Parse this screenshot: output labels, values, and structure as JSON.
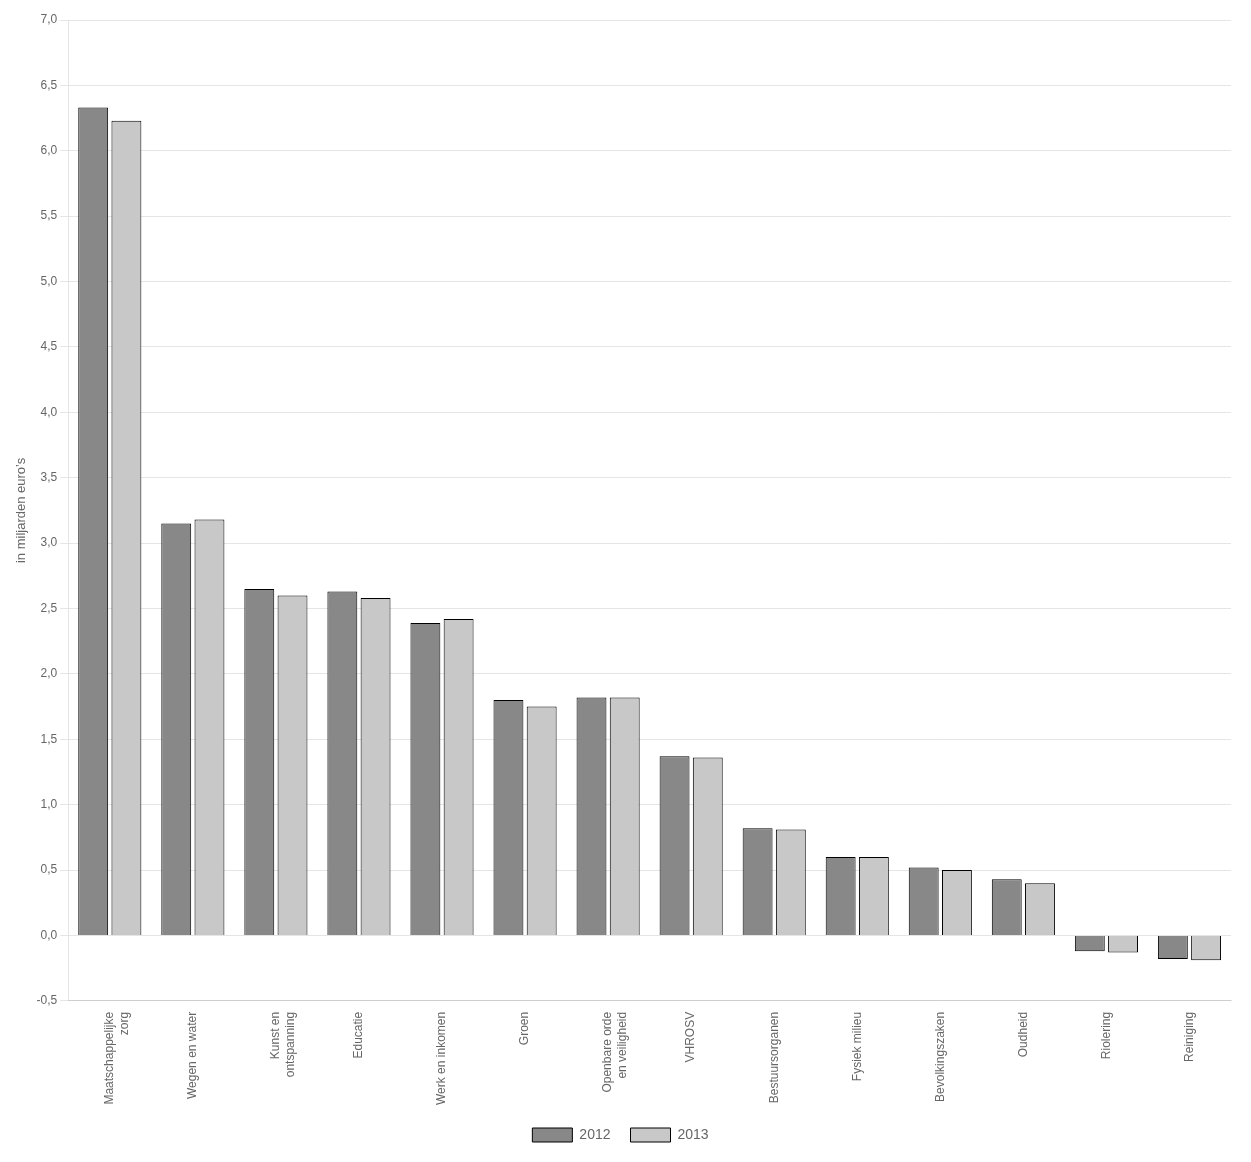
{
  "chart_data": {
    "type": "bar",
    "categories": [
      "Maatschappelijke\nzorg",
      "Wegen en water",
      "Kunst en\nontspanning",
      "Educatie",
      "Werk en inkomen",
      "Groen",
      "Openbare orde\nen veiligheid",
      "VHROSV",
      "Bestuursorganen",
      "Fysiek milieu",
      "Bevolkingszaken",
      "Oudheid",
      "Riolering",
      "Reiniging"
    ],
    "series": [
      {
        "name": "2012",
        "color": "#888888",
        "values": [
          6.33,
          3.15,
          2.65,
          2.63,
          2.39,
          1.8,
          1.82,
          1.37,
          0.82,
          0.6,
          0.52,
          0.43,
          -0.12,
          -0.18
        ]
      },
      {
        "name": "2013",
        "color": "#c8c8c8",
        "values": [
          6.23,
          3.18,
          2.6,
          2.58,
          2.42,
          1.75,
          1.82,
          1.36,
          0.81,
          0.6,
          0.5,
          0.4,
          -0.13,
          -0.19
        ]
      }
    ],
    "ylabel": "in miljarden euro’s",
    "ylim": [
      -0.5,
      7.0
    ],
    "yticks": [
      {
        "value": -0.5,
        "label": "-0,5"
      },
      {
        "value": 0.0,
        "label": "0,0"
      },
      {
        "value": 0.5,
        "label": "0,5"
      },
      {
        "value": 1.0,
        "label": "1,0"
      },
      {
        "value": 1.5,
        "label": "1,5"
      },
      {
        "value": 2.0,
        "label": "2,0"
      },
      {
        "value": 2.5,
        "label": "2,5"
      },
      {
        "value": 3.0,
        "label": "3,0"
      },
      {
        "value": 3.5,
        "label": "3,5"
      },
      {
        "value": 4.0,
        "label": "4,0"
      },
      {
        "value": 4.5,
        "label": "4,5"
      },
      {
        "value": 5.0,
        "label": "5,0"
      },
      {
        "value": 5.5,
        "label": "5,5"
      },
      {
        "value": 6.0,
        "label": "6,0"
      },
      {
        "value": 6.5,
        "label": "6,5"
      },
      {
        "value": 7.0,
        "label": "7,0"
      }
    ],
    "grid": true,
    "legend": "bottom"
  }
}
